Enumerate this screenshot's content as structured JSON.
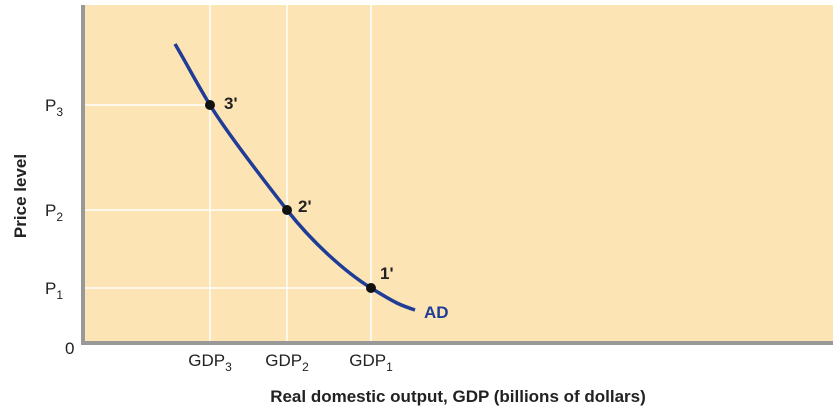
{
  "y_axis": {
    "title": "Price level",
    "origin": "0",
    "ticks": [
      {
        "base": "P",
        "sub": "3"
      },
      {
        "base": "P",
        "sub": "2"
      },
      {
        "base": "P",
        "sub": "1"
      }
    ]
  },
  "x_axis": {
    "title": "Real domestic output, GDP (billions of dollars)",
    "ticks": [
      {
        "base": "GDP",
        "sub": "3"
      },
      {
        "base": "GDP",
        "sub": "2"
      },
      {
        "base": "GDP",
        "sub": "1"
      }
    ]
  },
  "points": [
    "3'",
    "2'",
    "1'"
  ],
  "curve_label": "AD"
}
